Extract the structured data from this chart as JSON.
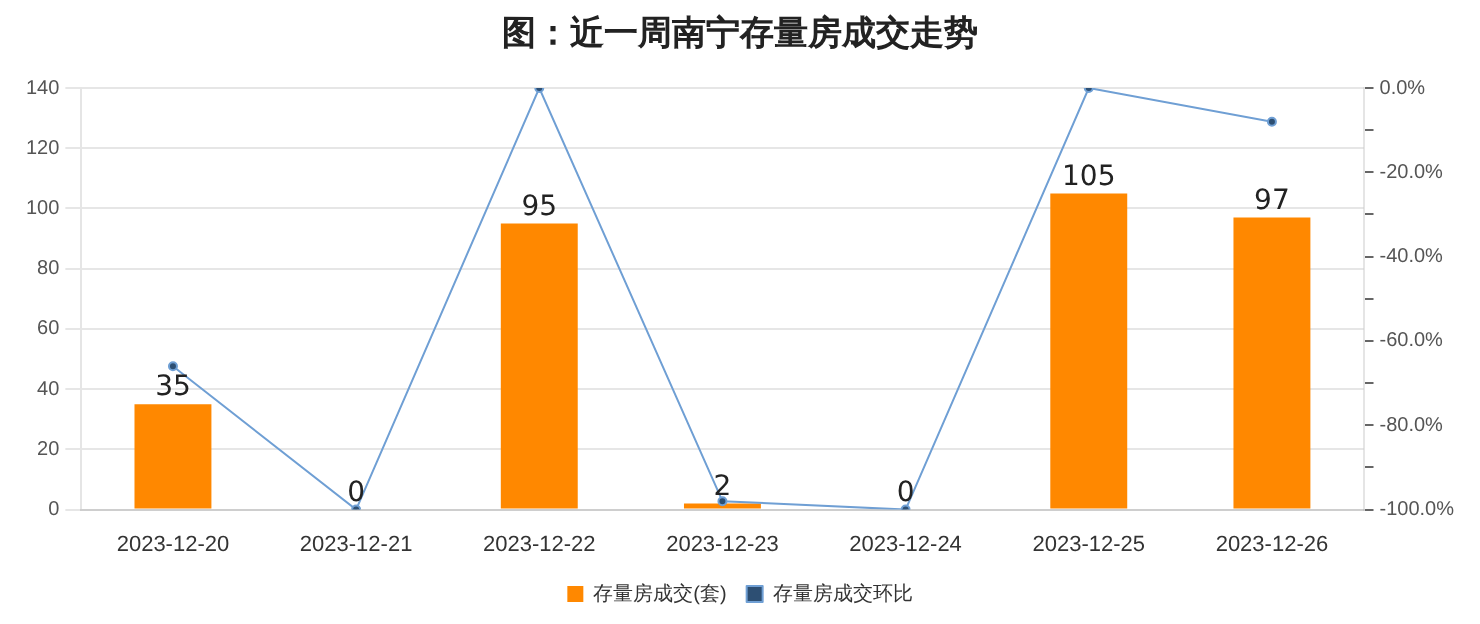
{
  "chart_data": {
    "type": "bar",
    "title": "图：近一周南宁存量房成交走势",
    "categories": [
      "2023-12-20",
      "2023-12-21",
      "2023-12-22",
      "2023-12-23",
      "2023-12-24",
      "2023-12-25",
      "2023-12-26"
    ],
    "series": [
      {
        "name": "存量房成交(套)",
        "color": "#ff8800",
        "values": [
          35,
          0,
          95,
          2,
          0,
          105,
          97
        ],
        "value_labels": [
          "35",
          "0",
          "95",
          "2",
          "0",
          "105",
          "97"
        ]
      },
      {
        "name": "存量房成交环比",
        "type": "line",
        "axis": "y2",
        "color": "#6f9fd4",
        "values": [
          -66,
          -100,
          0,
          -98,
          -100,
          0,
          -8
        ]
      }
    ],
    "ylim": [
      0,
      140
    ],
    "yticks": [
      0,
      20,
      40,
      60,
      80,
      100,
      120,
      140
    ],
    "y2lim": [
      -100,
      0
    ],
    "y2ticks": [
      {
        "value": -100,
        "label": "-100.0%"
      },
      {
        "value": -90,
        "label": null
      },
      {
        "value": -80,
        "label": "-80.0%"
      },
      {
        "value": -70,
        "label": null
      },
      {
        "value": -60,
        "label": "-60.0%"
      },
      {
        "value": -50,
        "label": null
      },
      {
        "value": -40,
        "label": "-40.0%"
      },
      {
        "value": -30,
        "label": null
      },
      {
        "value": -20,
        "label": "-20.0%"
      },
      {
        "value": -10,
        "label": null
      },
      {
        "value": 0,
        "label": "0.0%"
      }
    ],
    "grid": "y",
    "legend": "bottom",
    "marker": "circle"
  }
}
